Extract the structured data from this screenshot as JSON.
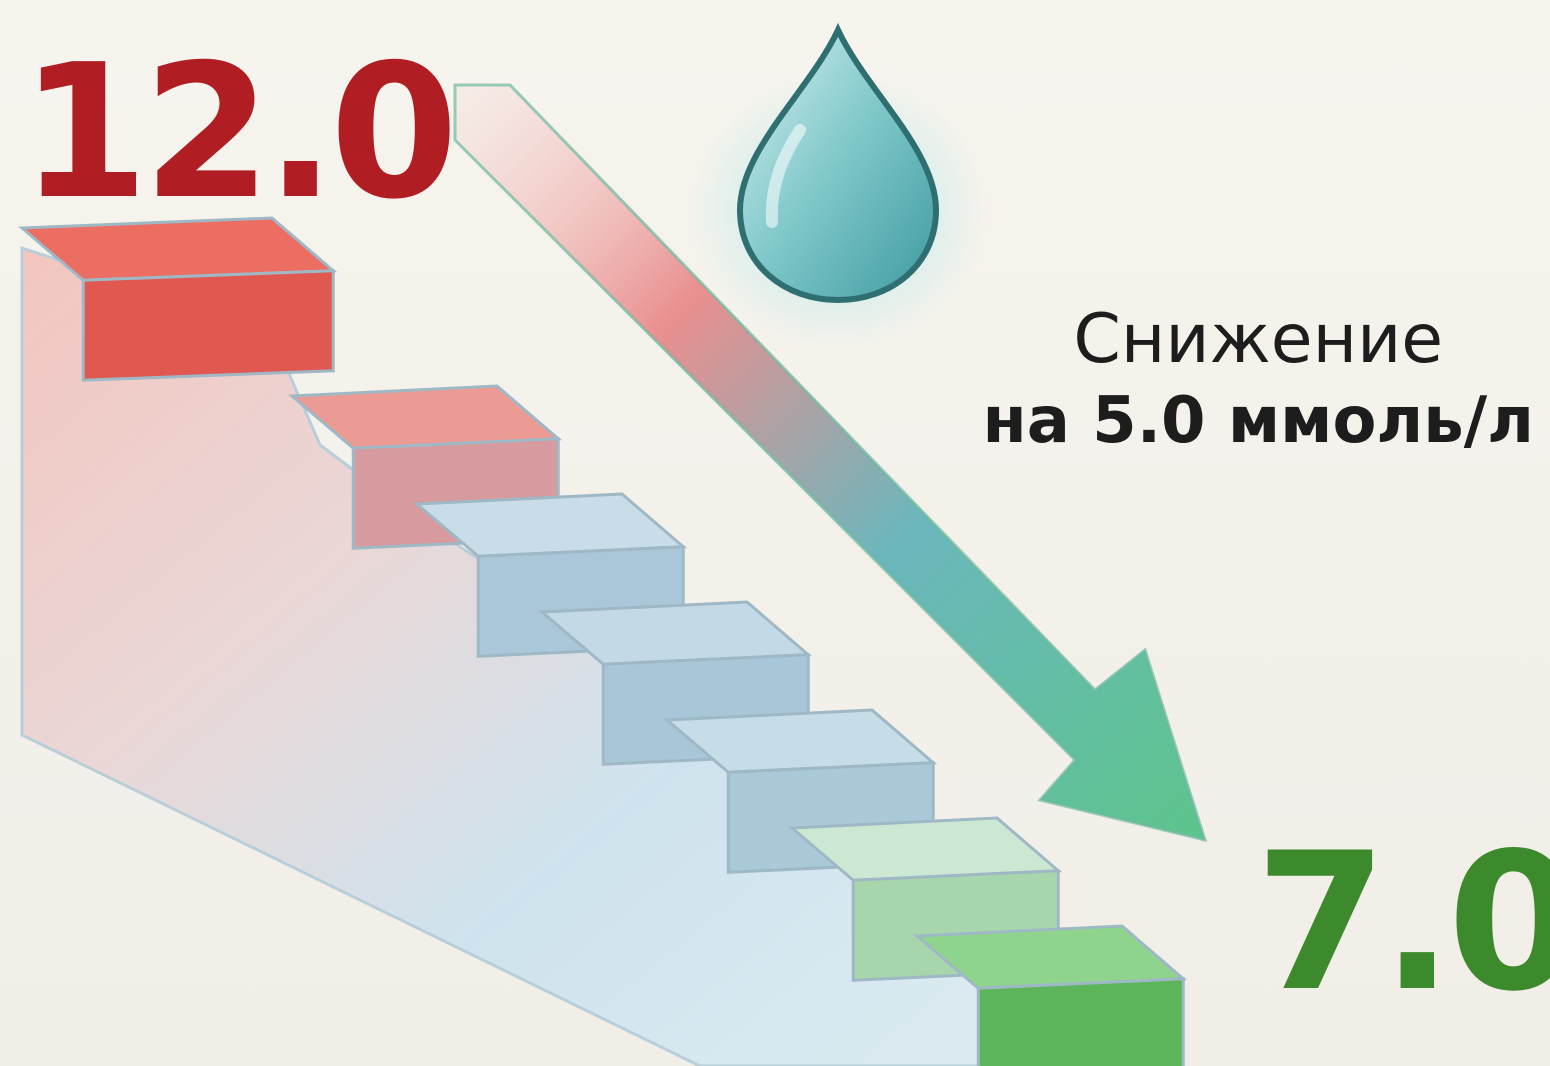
{
  "start_value": "12.0",
  "end_value": "7.0",
  "caption": {
    "line1": "Снижение",
    "line2": "на 5.0 ммоль/л"
  },
  "colors": {
    "start": "#b01e24",
    "end": "#3d8a2c",
    "drop": "#4fa6ab"
  },
  "icons": [
    "staircase-graphic",
    "down-arrow-icon",
    "water-drop-icon"
  ]
}
